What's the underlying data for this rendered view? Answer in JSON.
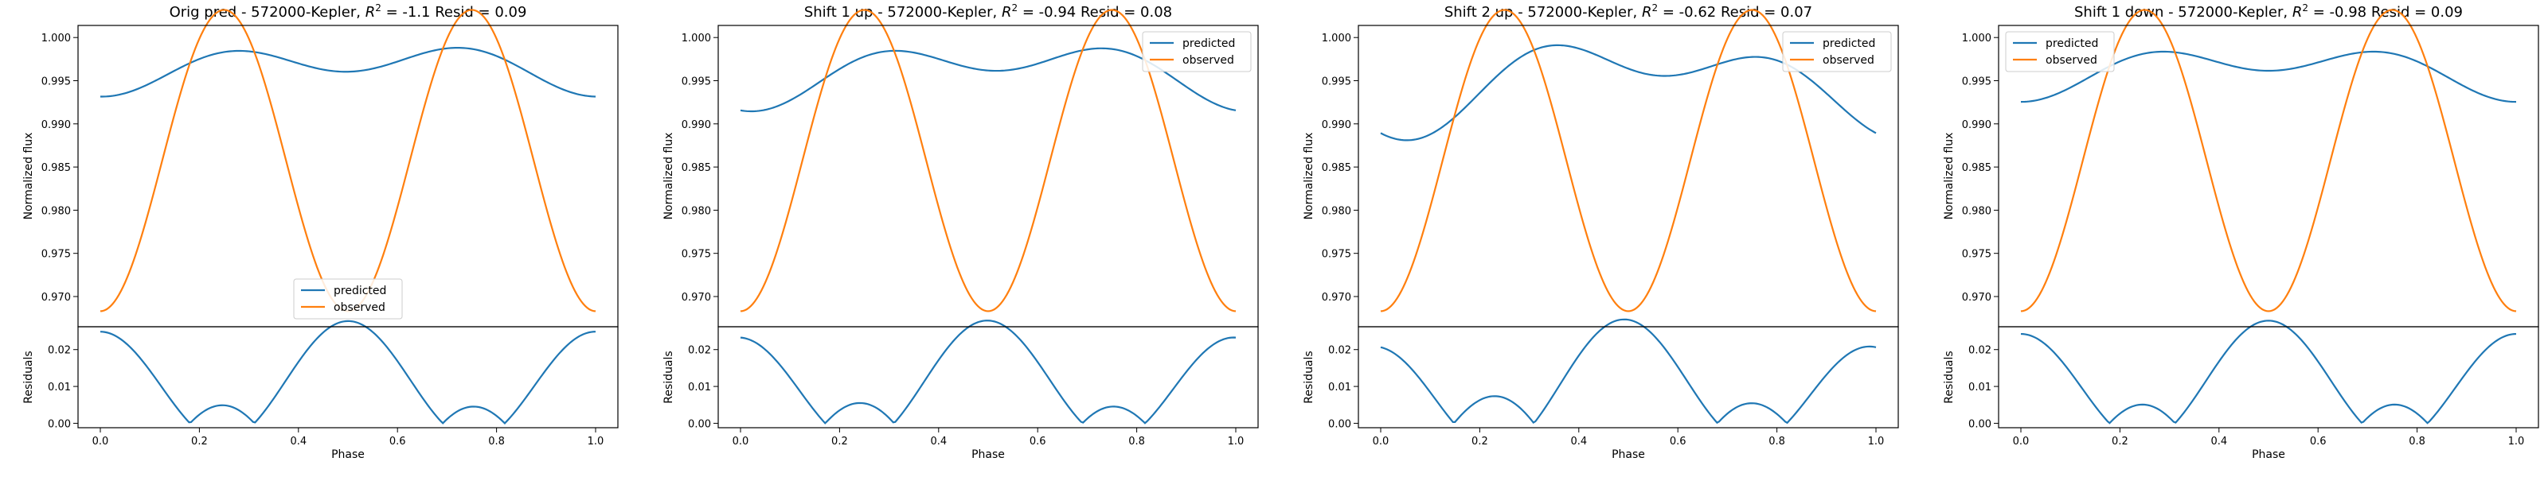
{
  "chart_data": [
    {
      "type": "line",
      "title": "Orig pred - 572000-Kepler, $R^2$ = -1.1 Resid = 0.09",
      "title_parts": [
        "Orig pred - 572000-Kepler, ",
        "R",
        "2",
        " = -1.1 Resid = 0.09"
      ],
      "xlabel": "Phase",
      "top": {
        "ylabel": "Normalized flux",
        "ylim": [
          0.9665,
          1.0014
        ],
        "yticks": [
          "1.000",
          "0.995",
          "0.990",
          "0.985",
          "0.980",
          "0.975",
          "0.970"
        ],
        "legend_loc": "lower center",
        "series": [
          {
            "name": "predicted",
            "color": "#1f77b4",
            "mean": 0.99655,
            "a1": -0.00145,
            "a2": -0.00195,
            "t1": 0.02,
            "t2": 0.0
          },
          {
            "name": "observed",
            "color": "#ff7f0e",
            "mean": 0.98575,
            "a1": 0.0,
            "a2": -0.01745,
            "t1": 0.0,
            "t2": 0.0
          }
        ]
      },
      "bottom": {
        "ylabel": "Residuals",
        "ylim": [
          -0.0012,
          0.0262
        ],
        "yticks": [
          "0.02",
          "0.01",
          "0.00"
        ]
      },
      "xticks": [
        "0.0",
        "0.2",
        "0.4",
        "0.6",
        "0.8",
        "1.0"
      ]
    },
    {
      "type": "line",
      "title": "Shift 1 up - 572000-Kepler, $R^2$ = -0.94 Resid = 0.08",
      "title_parts": [
        "Shift 1 up - 572000-Kepler, ",
        "R",
        "2",
        " = -0.94 Resid = 0.08"
      ],
      "xlabel": "Phase",
      "top": {
        "ylabel": "Normalized flux",
        "ylim": [
          0.9665,
          1.0014
        ],
        "yticks": [
          "1.000",
          "0.995",
          "0.990",
          "0.985",
          "0.980",
          "0.975",
          "0.970"
        ],
        "legend_loc": "upper right",
        "series": [
          {
            "name": "predicted",
            "color": "#1f77b4",
            "mean": 0.99605,
            "a1": -0.00235,
            "a2": -0.00225,
            "t1": 0.03,
            "t2": 0.02
          },
          {
            "name": "observed",
            "color": "#ff7f0e",
            "mean": 0.98575,
            "a1": 0.0,
            "a2": -0.01745,
            "t1": 0.0,
            "t2": 0.0
          }
        ]
      },
      "bottom": {
        "ylabel": "Residuals",
        "ylim": [
          -0.0012,
          0.0262
        ],
        "yticks": [
          "0.02",
          "0.01",
          "0.00"
        ]
      },
      "xticks": [
        "0.0",
        "0.2",
        "0.4",
        "0.6",
        "0.8",
        "1.0"
      ]
    },
    {
      "type": "line",
      "title": "Shift 2 up - 572000-Kepler, $R^2$ = -0.62 Resid = 0.07",
      "title_parts": [
        "Shift 2 up - 572000-Kepler, ",
        "R",
        "2",
        " = -0.62 Resid = 0.07"
      ],
      "xlabel": "Phase",
      "top": {
        "ylabel": "Normalized flux",
        "ylim": [
          0.9665,
          1.0014
        ],
        "yticks": [
          "1.000",
          "0.995",
          "0.990",
          "0.985",
          "0.980",
          "0.975",
          "0.970"
        ],
        "legend_loc": "upper right",
        "series": [
          {
            "name": "predicted",
            "color": "#1f77b4",
            "mean": 0.99485,
            "a1": -0.0038,
            "a2": -0.003,
            "t1": 0.03,
            "t2": 0.06
          },
          {
            "name": "observed",
            "color": "#ff7f0e",
            "mean": 0.98575,
            "a1": 0.0,
            "a2": -0.01745,
            "t1": 0.0,
            "t2": 0.0
          }
        ]
      },
      "bottom": {
        "ylabel": "Residuals",
        "ylim": [
          -0.0012,
          0.0262
        ],
        "yticks": [
          "0.02",
          "0.01",
          "0.00"
        ]
      },
      "xticks": [
        "0.0",
        "0.2",
        "0.4",
        "0.6",
        "0.8",
        "1.0"
      ]
    },
    {
      "type": "line",
      "title": "Shift 1 down - 572000-Kepler, $R^2$ = -0.98 Resid = 0.09",
      "title_parts": [
        "Shift 1 down - 572000-Kepler, ",
        "R",
        "2",
        " = -0.98 Resid = 0.09"
      ],
      "xlabel": "Phase",
      "top": {
        "ylabel": "Normalized flux",
        "ylim": [
          0.9665,
          1.0014
        ],
        "yticks": [
          "1.000",
          "0.995",
          "0.990",
          "0.985",
          "0.980",
          "0.975",
          "0.970"
        ],
        "legend_loc": "upper left",
        "series": [
          {
            "name": "predicted",
            "color": "#1f77b4",
            "mean": 0.99625,
            "a1": -0.0018,
            "a2": -0.0019,
            "t1": 0.0,
            "t2": 0.0
          },
          {
            "name": "observed",
            "color": "#ff7f0e",
            "mean": 0.98575,
            "a1": 0.0,
            "a2": -0.01745,
            "t1": 0.0,
            "t2": 0.0
          }
        ]
      },
      "bottom": {
        "ylabel": "Residuals",
        "ylim": [
          -0.0012,
          0.0262
        ],
        "yticks": [
          "0.02",
          "0.01",
          "0.00"
        ]
      },
      "xticks": [
        "0.0",
        "0.2",
        "0.4",
        "0.6",
        "0.8",
        "1.0"
      ]
    }
  ]
}
